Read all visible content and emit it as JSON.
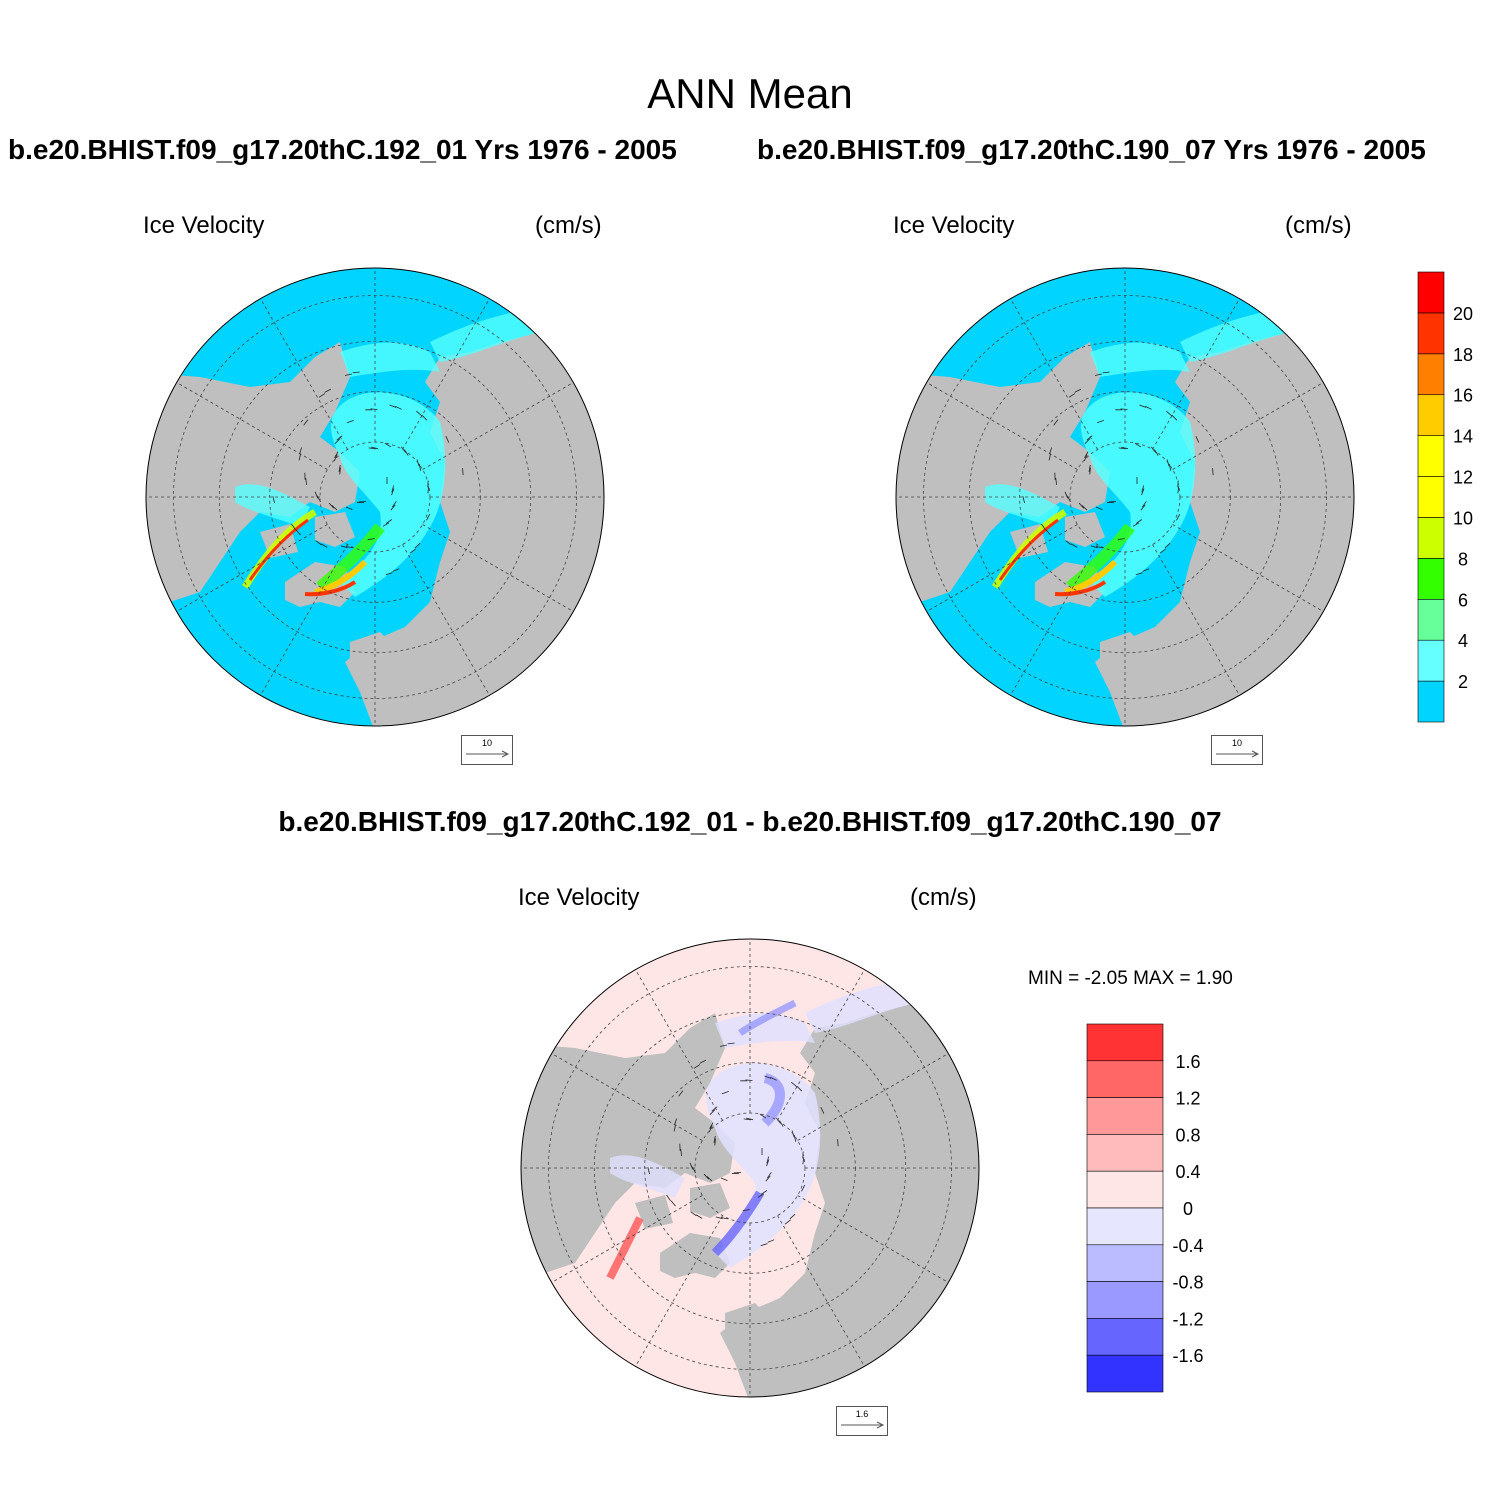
{
  "main_title": "ANN Mean",
  "panels": [
    {
      "case_title": "b.e20.BHIST.f09_g17.20thC.192_01  Yrs 1976 - 2005",
      "left_label": "Ice Velocity",
      "right_label": "(cm/s)",
      "ref_vector": "10"
    },
    {
      "case_title": "b.e20.BHIST.f09_g17.20thC.190_07  Yrs 1976 - 2005",
      "left_label": "Ice Velocity",
      "right_label": "(cm/s)",
      "ref_vector": "10"
    }
  ],
  "diff_panel": {
    "title": "b.e20.BHIST.f09_g17.20thC.192_01 - b.e20.BHIST.f09_g17.20thC.190_07",
    "left_label": "Ice Velocity",
    "right_label": "(cm/s)",
    "min_max": "MIN =  -2.05 MAX =   1.90",
    "ref_vector": "1.6"
  },
  "colorbar_top": {
    "labels": [
      "2",
      "4",
      "6",
      "8",
      "10",
      "12",
      "14",
      "16",
      "18",
      "20"
    ],
    "colors": [
      "#00d4ff",
      "#66ffff",
      "#66ff99",
      "#33ff00",
      "#ccff00",
      "#ffff00",
      "#ffff00",
      "#ffcc00",
      "#ff8000",
      "#ff3300",
      "#ff0000"
    ]
  },
  "colorbar_diff": {
    "labels": [
      "1.6",
      "1.2",
      "0.8",
      "0.4",
      "0",
      "-0.4",
      "-0.8",
      "-1.2",
      "-1.6"
    ],
    "colors": [
      "#ff3333",
      "#ff6666",
      "#ff9999",
      "#ffbbbb",
      "#ffe6e6",
      "#e6e6ff",
      "#bbbbff",
      "#9999ff",
      "#6666ff",
      "#3333ff"
    ]
  },
  "map_colors": {
    "ocean": "#00d4ff",
    "land": "#bfbfbf",
    "ice": "#55ffff",
    "diff_ocean": "#ffe6e6",
    "diff_ice": "#e0e0ff"
  }
}
